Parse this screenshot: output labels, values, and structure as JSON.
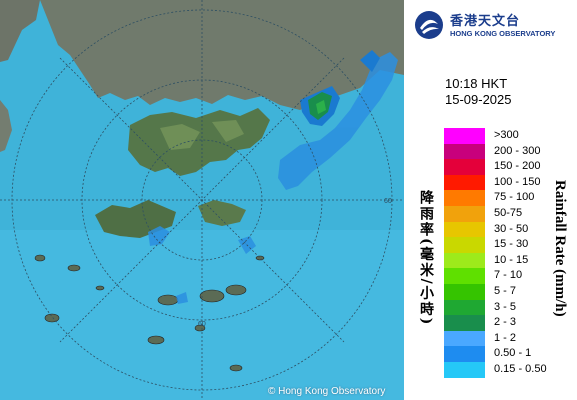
{
  "map": {
    "copyright": "© Hong Kong Observatory",
    "range_ring_label": "60",
    "colors": {
      "sea": "#46b2d8",
      "land": "#6f7a66",
      "terrain_green": "#4c7a3d"
    }
  },
  "header": {
    "logo_chinese": "香港天文台",
    "logo_english": "HONG KONG OBSERVATORY",
    "logo_icon": "hko-logo-icon"
  },
  "timestamp": {
    "time": "10:18 HKT",
    "date": "15-09-2025"
  },
  "legend": {
    "title_chinese": "降雨率(毫米/小時)",
    "title_english": "Rainfall Rate (mm/h)",
    "items": [
      {
        "label": ">300",
        "color": "#ff00ff"
      },
      {
        "label": "200 - 300",
        "color": "#c8007c"
      },
      {
        "label": "150 - 200",
        "color": "#e4003a"
      },
      {
        "label": "100 - 150",
        "color": "#ff1a00"
      },
      {
        "label": "75 - 100",
        "color": "#ff7a00"
      },
      {
        "label": "50-75",
        "color": "#f1a20c"
      },
      {
        "label": "30 - 50",
        "color": "#e7c600"
      },
      {
        "label": "15 - 30",
        "color": "#c9d800"
      },
      {
        "label": "10 - 15",
        "color": "#9dea1b"
      },
      {
        "label": "7 - 10",
        "color": "#5fe000"
      },
      {
        "label": "5 - 7",
        "color": "#35c400"
      },
      {
        "label": "3 - 5",
        "color": "#1fa832"
      },
      {
        "label": "2 - 3",
        "color": "#198e4c"
      },
      {
        "label": "1 - 2",
        "color": "#4aa8ff"
      },
      {
        "label": "0.50 - 1",
        "color": "#1e8cf0"
      },
      {
        "label": "0.15 - 0.50",
        "color": "#25c8f7"
      }
    ]
  }
}
